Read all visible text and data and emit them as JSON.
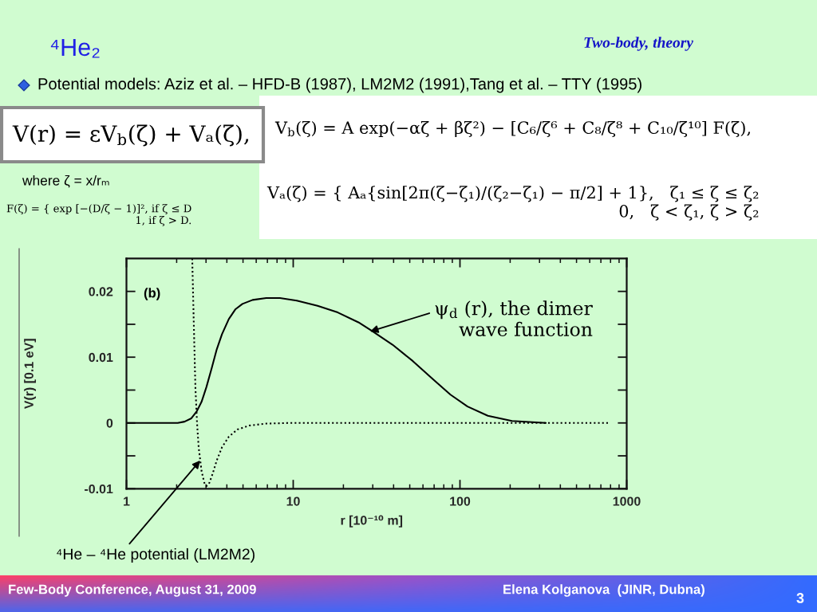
{
  "chart_data": {
    "type": "line",
    "title": "⁴He₂",
    "subtitle": "Two-body, theory",
    "xlabel": "r [10⁻¹⁰ m]",
    "ylabel": "V(r) [0.1 eV]",
    "log": "x",
    "xlim": [
      1,
      1000
    ],
    "xticks": [
      1,
      10,
      100,
      1000
    ],
    "ylim": [
      -0.01,
      0.025
    ],
    "yticks": [
      -0.01,
      {
        "value": -0.005,
        "label": null
      },
      0,
      {
        "value": 0.005,
        "label": null
      },
      0.01,
      {
        "value": 0.015,
        "label": null
      },
      0.02
    ],
    "series": [
      {
        "color": "#000000",
        "line_style": "solid",
        "x": [
          1,
          2.03,
          2.23,
          2.45,
          2.63,
          2.82,
          3.02,
          3.25,
          3.48,
          3.74,
          4.11,
          4.51,
          4.96,
          5.71,
          6.89,
          8.33,
          10.5,
          14.0,
          18.5,
          24.6,
          29.6,
          39.4,
          52.2,
          69.2,
          87.7,
          111,
          147,
          205,
          327
        ],
        "values": [
          0,
          0,
          0.0002,
          0.0007,
          0.0017,
          0.0032,
          0.0055,
          0.0084,
          0.0112,
          0.0135,
          0.0158,
          0.0173,
          0.0181,
          0.0187,
          0.019,
          0.019,
          0.0186,
          0.0178,
          0.0168,
          0.0153,
          0.014,
          0.0119,
          0.0094,
          0.0066,
          0.0043,
          0.0025,
          0.0011,
          0.0003,
          0
        ]
      },
      {
        "color": "#000000",
        "line_style": "dotted",
        "x": [
          2.48,
          2.53,
          2.59,
          2.65,
          2.71,
          2.82,
          2.93,
          3.02,
          3.12,
          3.28,
          3.48,
          3.74,
          4.11,
          4.62,
          5.45,
          6.89,
          9.58,
          783
        ],
        "values": [
          0.025,
          0.0158,
          0.0055,
          0,
          -0.0037,
          -0.0073,
          -0.0091,
          -0.0096,
          -0.0093,
          -0.0078,
          -0.0057,
          -0.0037,
          -0.0021,
          -0.001,
          -0.0004,
          -0.0001,
          0,
          0
        ]
      }
    ],
    "annotations": [
      "Potential models: Aziz et al. – HFD-B (1987), LM2M2 (1991),Tang et al. – TTY (1995)",
      "V(r) = εV$_{b}$(ζ) + Vₐ(ζ),",
      "V$_{b}$(ζ) = A exp(−αζ + βζ²) − [C₆/ζ⁶ + C₈/ζ⁸ + C₁₀/ζ¹⁰] F(ζ),",
      "where ζ = x/rₘ",
      "F(ζ) = { exp [−(D/ζ − 1)]², if ζ ≤ D\n1, if ζ > D.",
      "Vₐ(ζ) = { Aₐ{sin[2π(ζ−ζ₁)/(ζ₂−ζ₁) − π/2] + 1},   ζ₁ ≤ ζ ≤ ζ₂\n0,   ζ < ζ₁, ζ > ζ₂",
      "(b)",
      {
        "text": "ψ$_{d}$ (r), the dimer\nwave function",
        "x": 28.9,
        "y": 0.0139
      },
      {
        "text": "⁴He – ⁴He potential (LM2M2)",
        "x": 2.77,
        "y": -0.0057
      },
      "Few-Body Conference, August 31, 2009",
      "Elena Kolganova  (JINR, Dubna)",
      "3"
    ]
  }
}
